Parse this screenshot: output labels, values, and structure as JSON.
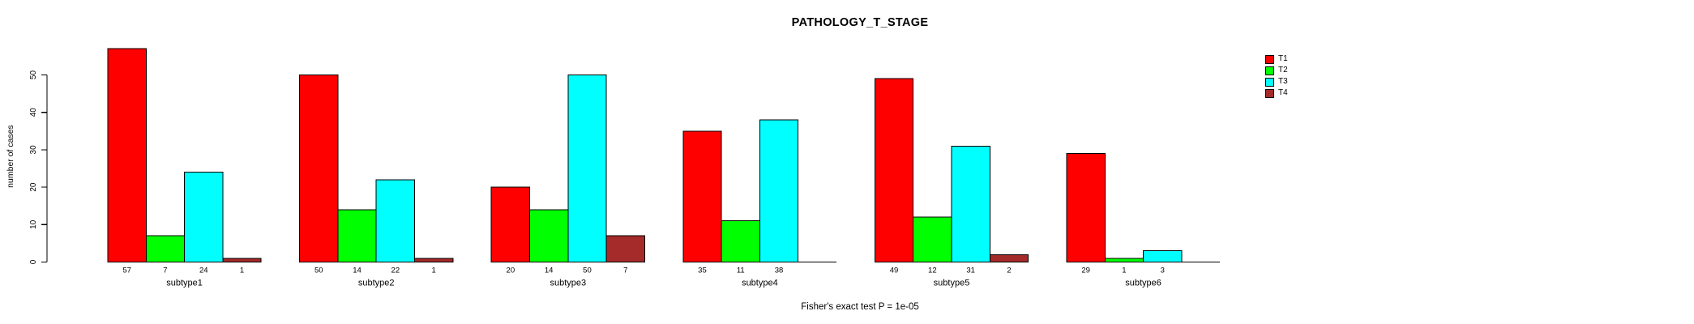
{
  "chart_data": {
    "type": "bar",
    "title": "PATHOLOGY_T_STAGE",
    "ylabel": "number of cases",
    "xlabel": "",
    "caption": "Fisher's exact test P = 1e-05",
    "categories": [
      "subtype1",
      "subtype2",
      "subtype3",
      "subtype4",
      "subtype5",
      "subtype6"
    ],
    "series": [
      {
        "name": "T1",
        "color": "#FF0000",
        "values": [
          57,
          50,
          20,
          35,
          49,
          29
        ]
      },
      {
        "name": "T2",
        "color": "#00FF00",
        "values": [
          7,
          14,
          14,
          11,
          12,
          1
        ]
      },
      {
        "name": "T3",
        "color": "#00FFFF",
        "values": [
          24,
          22,
          50,
          38,
          31,
          3
        ]
      },
      {
        "name": "T4",
        "color": "#A52A2A",
        "values": [
          1,
          1,
          7,
          0,
          2,
          0
        ]
      }
    ],
    "bar_value_labels_shown": true,
    "zero_values_unlabeled": true,
    "yticks": [
      0,
      10,
      20,
      30,
      40,
      50
    ],
    "ylim": [
      0,
      50
    ],
    "grid": false,
    "legend_position": "right",
    "bar_border_color": "#000000",
    "background_color": "#FFFFFF",
    "text_color": "#000000"
  }
}
